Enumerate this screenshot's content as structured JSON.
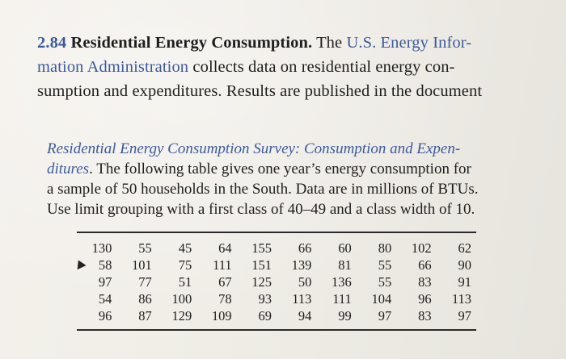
{
  "problem": {
    "number": "2.84",
    "title": "Residential Energy Consumption.",
    "lines": [
      [
        "The ",
        "U.S. Energy Infor-"
      ],
      [
        "mation Administration",
        " collects data on residential energy con-"
      ],
      [
        "sumption and expenditures. Results are published in the document",
        ""
      ]
    ]
  },
  "passage": {
    "line1_ital": "Residential Energy Consumption Survey: Consumption and Expen-",
    "line2_ital": "ditures",
    "line2_rest": ". The following table gives one year’s energy consumption for",
    "line3": "a sample of 50 households in the South. Data are in millions of BTUs.",
    "line4": "Use limit grouping with a first class of 40–49 and a class width of 10."
  },
  "table": {
    "rows": [
      [
        "130",
        "55",
        "45",
        "64",
        "155",
        "66",
        "60",
        "80",
        "102",
        "62"
      ],
      [
        "58",
        "101",
        "75",
        "111",
        "151",
        "139",
        "81",
        "55",
        "66",
        "90"
      ],
      [
        "97",
        "77",
        "51",
        "67",
        "125",
        "50",
        "136",
        "55",
        "83",
        "91"
      ],
      [
        "54",
        "86",
        "100",
        "78",
        "93",
        "113",
        "111",
        "104",
        "96",
        "113"
      ],
      [
        "96",
        "87",
        "129",
        "109",
        "69",
        "94",
        "99",
        "97",
        "83",
        "97"
      ]
    ]
  }
}
